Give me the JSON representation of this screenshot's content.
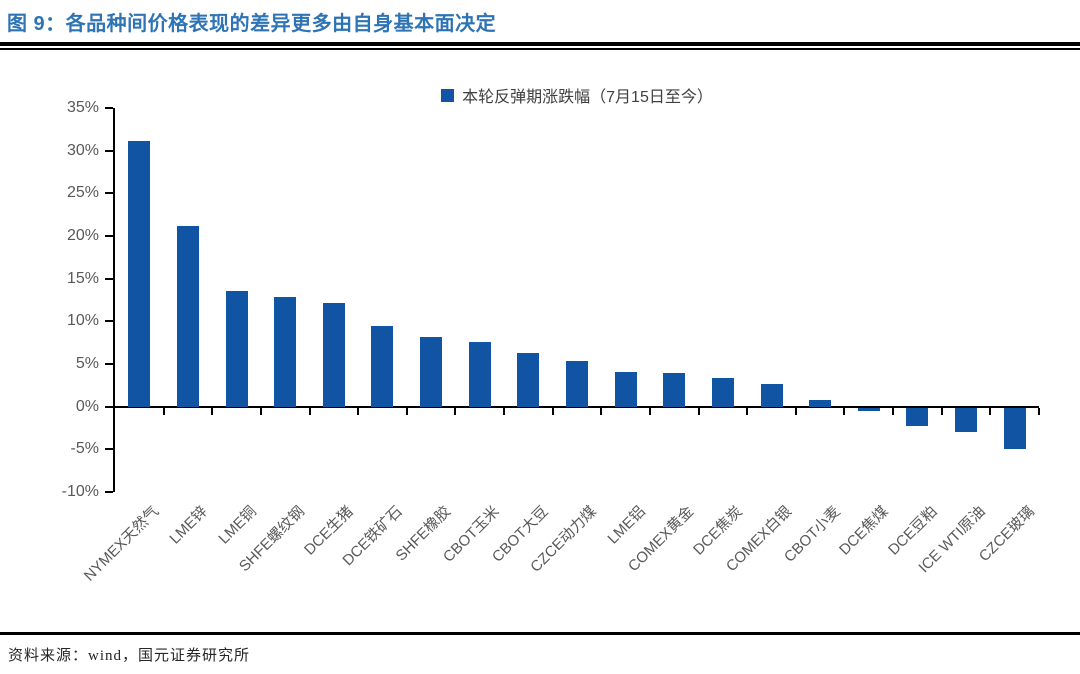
{
  "header": {
    "title": "图 9：各品种间价格表现的差异更多由自身基本面决定",
    "title_color": "#2E74B5"
  },
  "chart_data": {
    "type": "bar",
    "title": "",
    "legend": "本轮反弹期涨跌幅（7月15日至今）",
    "legend_position": "top-center",
    "categories": [
      "NYMEX天然气",
      "LME锌",
      "LME铜",
      "SHFE螺纹钢",
      "DCE生猪",
      "DCE铁矿石",
      "SHFE橡胶",
      "CBOT玉米",
      "CBOT大豆",
      "CZCE动力煤",
      "LME铝",
      "COMEX黄金",
      "DCE焦炭",
      "COMEX白银",
      "CBOT小麦",
      "DCE焦煤",
      "DCE豆粕",
      "ICE WTI原油",
      "CZCE玻璃"
    ],
    "values": [
      31.1,
      21.2,
      13.5,
      12.9,
      12.1,
      9.4,
      8.2,
      7.6,
      6.3,
      5.4,
      4.1,
      3.9,
      3.4,
      2.6,
      0.8,
      -0.4,
      -2.1,
      -2.8,
      -4.8
    ],
    "ylim": [
      -10,
      35
    ],
    "ytick_step": 5,
    "ytick_suffix": "%",
    "grid": false,
    "bar_color": "#1254A4",
    "axis_color": "#000000",
    "tick_label_color": "#595959"
  },
  "footer": {
    "source": "资料来源：wind，国元证券研究所"
  }
}
